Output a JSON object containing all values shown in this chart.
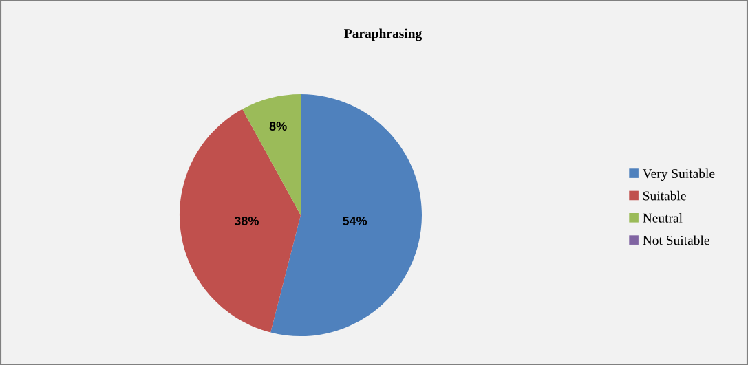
{
  "chart_data": {
    "type": "pie",
    "title": "Paraphrasing",
    "categories": [
      "Very Suitable",
      "Suitable",
      "Neutral",
      "Not Suitable"
    ],
    "values": [
      54,
      38,
      8,
      0
    ],
    "colors": [
      "#4f81bd",
      "#c0504d",
      "#9bbb59",
      "#8064a2"
    ],
    "value_labels": [
      "54%",
      "38%",
      "8%",
      null
    ],
    "legend": "right"
  }
}
